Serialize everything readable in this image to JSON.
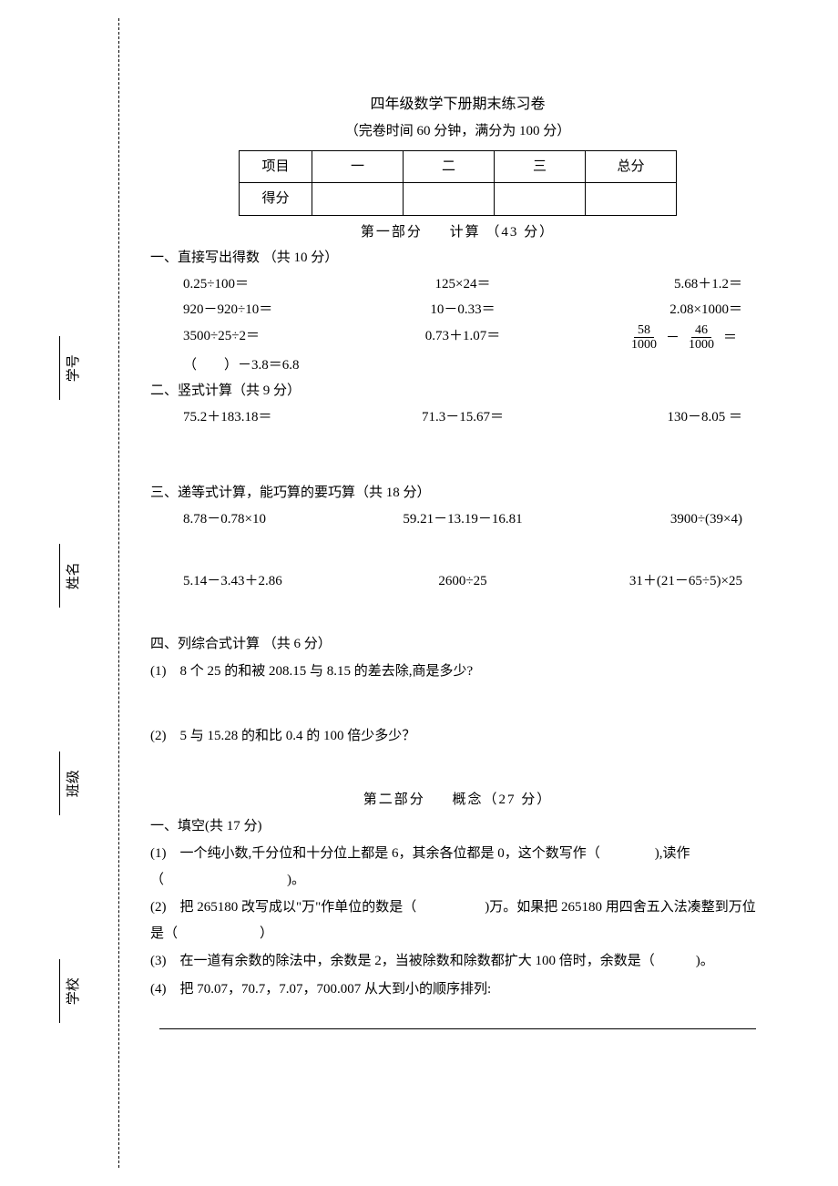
{
  "sidebar": {
    "school": "学校",
    "class": "班级",
    "name": "姓名",
    "number": "学号"
  },
  "header": {
    "title": "四年级数学下册期末练习卷",
    "subtitle": "（完卷时间 60 分钟，满分为 100 分）"
  },
  "score_table": {
    "headers": [
      "项目",
      "一",
      "二",
      "三",
      "总分"
    ],
    "row_label": "得分"
  },
  "part1": {
    "heading_a": "第一部分",
    "heading_b": "计算 （43 分）",
    "s1": {
      "title": "一、直接写出得数 （共 10 分）",
      "r1a": "0.25÷100＝",
      "r1b": "125×24＝",
      "r1c": "5.68＋1.2＝",
      "r2a": "920－920÷10＝",
      "r2b": "10－0.33＝",
      "r2c": "2.08×1000＝",
      "r3a": "3500÷25÷2＝",
      "r3b": "0.73＋1.07＝",
      "frac_n1": "58",
      "frac_d1": "1000",
      "frac_op": "－",
      "frac_n2": "46",
      "frac_d2": "1000",
      "frac_eq": "＝",
      "r4a": "（　　）－3.8＝6.8"
    },
    "s2": {
      "title": "二、竖式计算（共 9 分）",
      "a": "75.2＋183.18＝",
      "b": "71.3－15.67＝",
      "c": "130－8.05 ＝"
    },
    "s3": {
      "title": "三、递等式计算，能巧算的要巧算（共 18 分）",
      "r1a": "8.78－0.78×10",
      "r1b": "59.21－13.19－16.81",
      "r1c": "3900÷(39×4)",
      "r2a": "5.14－3.43＋2.86",
      "r2b": "2600÷25",
      "r2c": "31＋(21－65÷5)×25"
    },
    "s4": {
      "title": "四、列综合式计算 （共 6 分）",
      "q1": "(1)　8 个 25 的和被 208.15 与 8.15 的差去除,商是多少?",
      "q2": "(2)　5 与 15.28 的和比 0.4 的 100 倍少多少？"
    }
  },
  "part2": {
    "heading_a": "第二部分",
    "heading_b": "概念（27 分）",
    "s1": {
      "title": "一、填空(共 17 分)",
      "q1": "(1)　一个纯小数,千分位和十分位上都是 6，其余各位都是 0，这个数写作（　　　　),读作（　　　　　　　　　)。",
      "q2": "(2)　把 265180 改写成以\"万\"作单位的数是（　　　　　)万。如果把 265180 用四舍五入法凑整到万位是（　　　　　　）",
      "q3": "(3)　在一道有余数的除法中，余数是 2，当被除数和除数都扩大 100 倍时，余数是（　　　)。",
      "q4": "(4)　把 70.07，70.7，7.07，700.007 从大到小的顺序排列:"
    }
  }
}
